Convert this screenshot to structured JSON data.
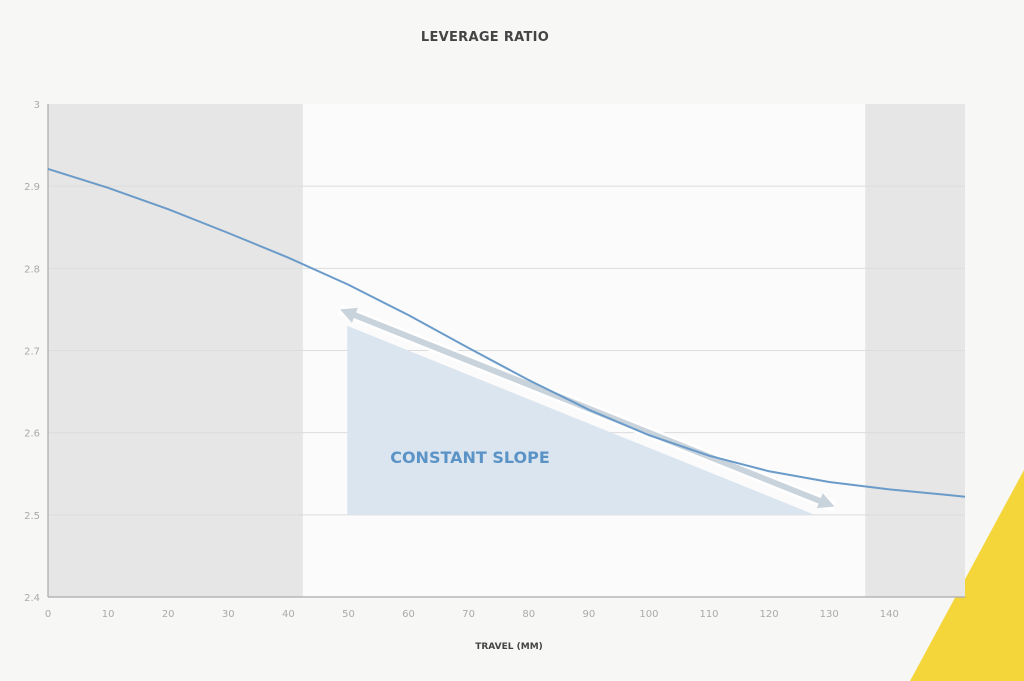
{
  "chart_data": {
    "type": "line",
    "title": "LEVERAGE RATIO",
    "xlabel": "TRAVEL (MM)",
    "ylabel": "",
    "xlim": [
      0,
      152.6
    ],
    "ylim": [
      2.4,
      3.0
    ],
    "xticks": [
      "0",
      "10",
      "20",
      "30",
      "40",
      "50",
      "60",
      "70",
      "80",
      "90",
      "100",
      "110",
      "120",
      "130",
      "140"
    ],
    "yticks": [
      "2.4",
      "2.5",
      "2.6",
      "2.7",
      "2.8",
      "2.9",
      "3"
    ],
    "grid": "horizontal",
    "series": [
      {
        "name": "Leverage ratio",
        "color": "#6b9bc9",
        "x": [
          0,
          10,
          20,
          30,
          40,
          50,
          60,
          70,
          80,
          90,
          100,
          110,
          120,
          130,
          140,
          150,
          152.6
        ],
        "y": [
          2.921,
          2.898,
          2.872,
          2.843,
          2.813,
          2.78,
          2.743,
          2.703,
          2.664,
          2.628,
          2.597,
          2.572,
          2.553,
          2.54,
          2.531,
          2.524,
          2.522
        ]
      }
    ],
    "shaded_regions": [
      {
        "x": [
          0,
          42.4
        ],
        "color": "#e6e6e6"
      },
      {
        "x": [
          136,
          152.6
        ],
        "color": "#e6e6e6"
      }
    ],
    "annotation": {
      "text": "CONSTANT SLOPE",
      "color": "#5b93c7",
      "triangle": {
        "x": [
          49.8,
          127.6
        ],
        "y_top": 2.73,
        "y_bottom": 2.5,
        "color": "#dbe5ef"
      },
      "arrow": {
        "from": [
          48.6,
          2.75
        ],
        "to": [
          130.9,
          2.51
        ],
        "color": "#c9d3dc"
      }
    }
  }
}
